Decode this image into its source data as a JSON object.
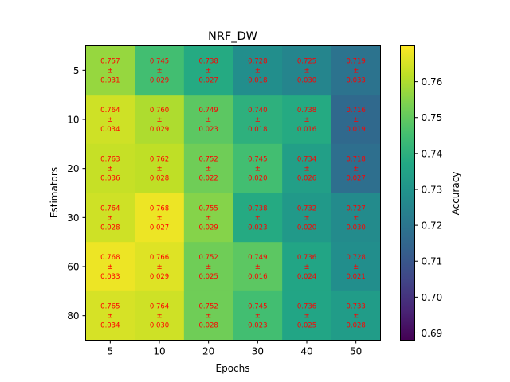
{
  "chart_data": {
    "type": "heatmap",
    "title": "NRF_DW",
    "xlabel": "Epochs",
    "ylabel": "Estimators",
    "colorbar_label": "Accuracy",
    "x_categories": [
      "5",
      "10",
      "20",
      "30",
      "40",
      "50"
    ],
    "y_categories": [
      "5",
      "10",
      "20",
      "30",
      "60",
      "80"
    ],
    "means": [
      [
        0.757,
        0.745,
        0.738,
        0.728,
        0.725,
        0.719
      ],
      [
        0.764,
        0.76,
        0.749,
        0.74,
        0.738,
        0.716
      ],
      [
        0.763,
        0.762,
        0.752,
        0.745,
        0.734,
        0.718
      ],
      [
        0.764,
        0.768,
        0.755,
        0.738,
        0.732,
        0.727
      ],
      [
        0.768,
        0.766,
        0.752,
        0.749,
        0.736,
        0.728
      ],
      [
        0.765,
        0.764,
        0.752,
        0.745,
        0.736,
        0.733
      ]
    ],
    "stds": [
      [
        0.031,
        0.029,
        0.027,
        0.018,
        0.03,
        0.033
      ],
      [
        0.034,
        0.029,
        0.023,
        0.018,
        0.016,
        0.019
      ],
      [
        0.036,
        0.028,
        0.022,
        0.02,
        0.026,
        0.027
      ],
      [
        0.028,
        0.027,
        0.029,
        0.023,
        0.02,
        0.03
      ],
      [
        0.033,
        0.029,
        0.025,
        0.016,
        0.024,
        0.021
      ],
      [
        0.034,
        0.03,
        0.028,
        0.023,
        0.025,
        0.028
      ]
    ],
    "pm_symbol": "±",
    "colorbar_range": [
      0.688,
      0.77
    ],
    "colorbar_ticks": [
      "0.69",
      "0.70",
      "0.71",
      "0.72",
      "0.73",
      "0.74",
      "0.75",
      "0.76"
    ],
    "colormap": "viridis",
    "annotation_color": "#ff0000"
  }
}
